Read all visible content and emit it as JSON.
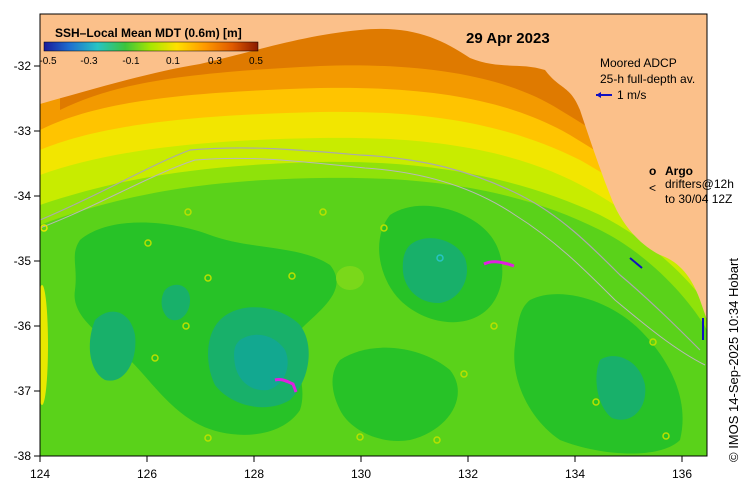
{
  "map": {
    "date": "29 Apr 2023",
    "colorbar": {
      "title": "SSH–Local Mean MDT (0.6m) [m]",
      "ticks": [
        "-0.5",
        "-0.3",
        "-0.1",
        "0.1",
        "0.3",
        "0.5"
      ],
      "colors": [
        "#1a1a9a",
        "#1e6fd0",
        "#27c4c4",
        "#3cc43c",
        "#a8e600",
        "#ffe000",
        "#ff9a00",
        "#e05a00",
        "#8a1a00"
      ]
    },
    "x_ticks": [
      "124",
      "126",
      "128",
      "130",
      "132",
      "134",
      "136"
    ],
    "y_ticks": [
      "-32",
      "-33",
      "-34",
      "-35",
      "-36",
      "-37",
      "-38"
    ],
    "x_range": [
      124,
      136.5
    ],
    "y_range": [
      -31.3,
      -38.1
    ],
    "legend_adcp": {
      "line1": "Moored ADCP",
      "line2": "25-h full-depth av.",
      "scale": "1 m/s"
    },
    "legend_argo": {
      "symbol": "o",
      "label": "Argo",
      "drifter_symbol": "<",
      "drifter_line1": "drifters@12h",
      "drifter_line2": "to 30/04 12Z"
    },
    "credit": "© IMOS 14-Sep-2025 10:34 Hobart"
  }
}
